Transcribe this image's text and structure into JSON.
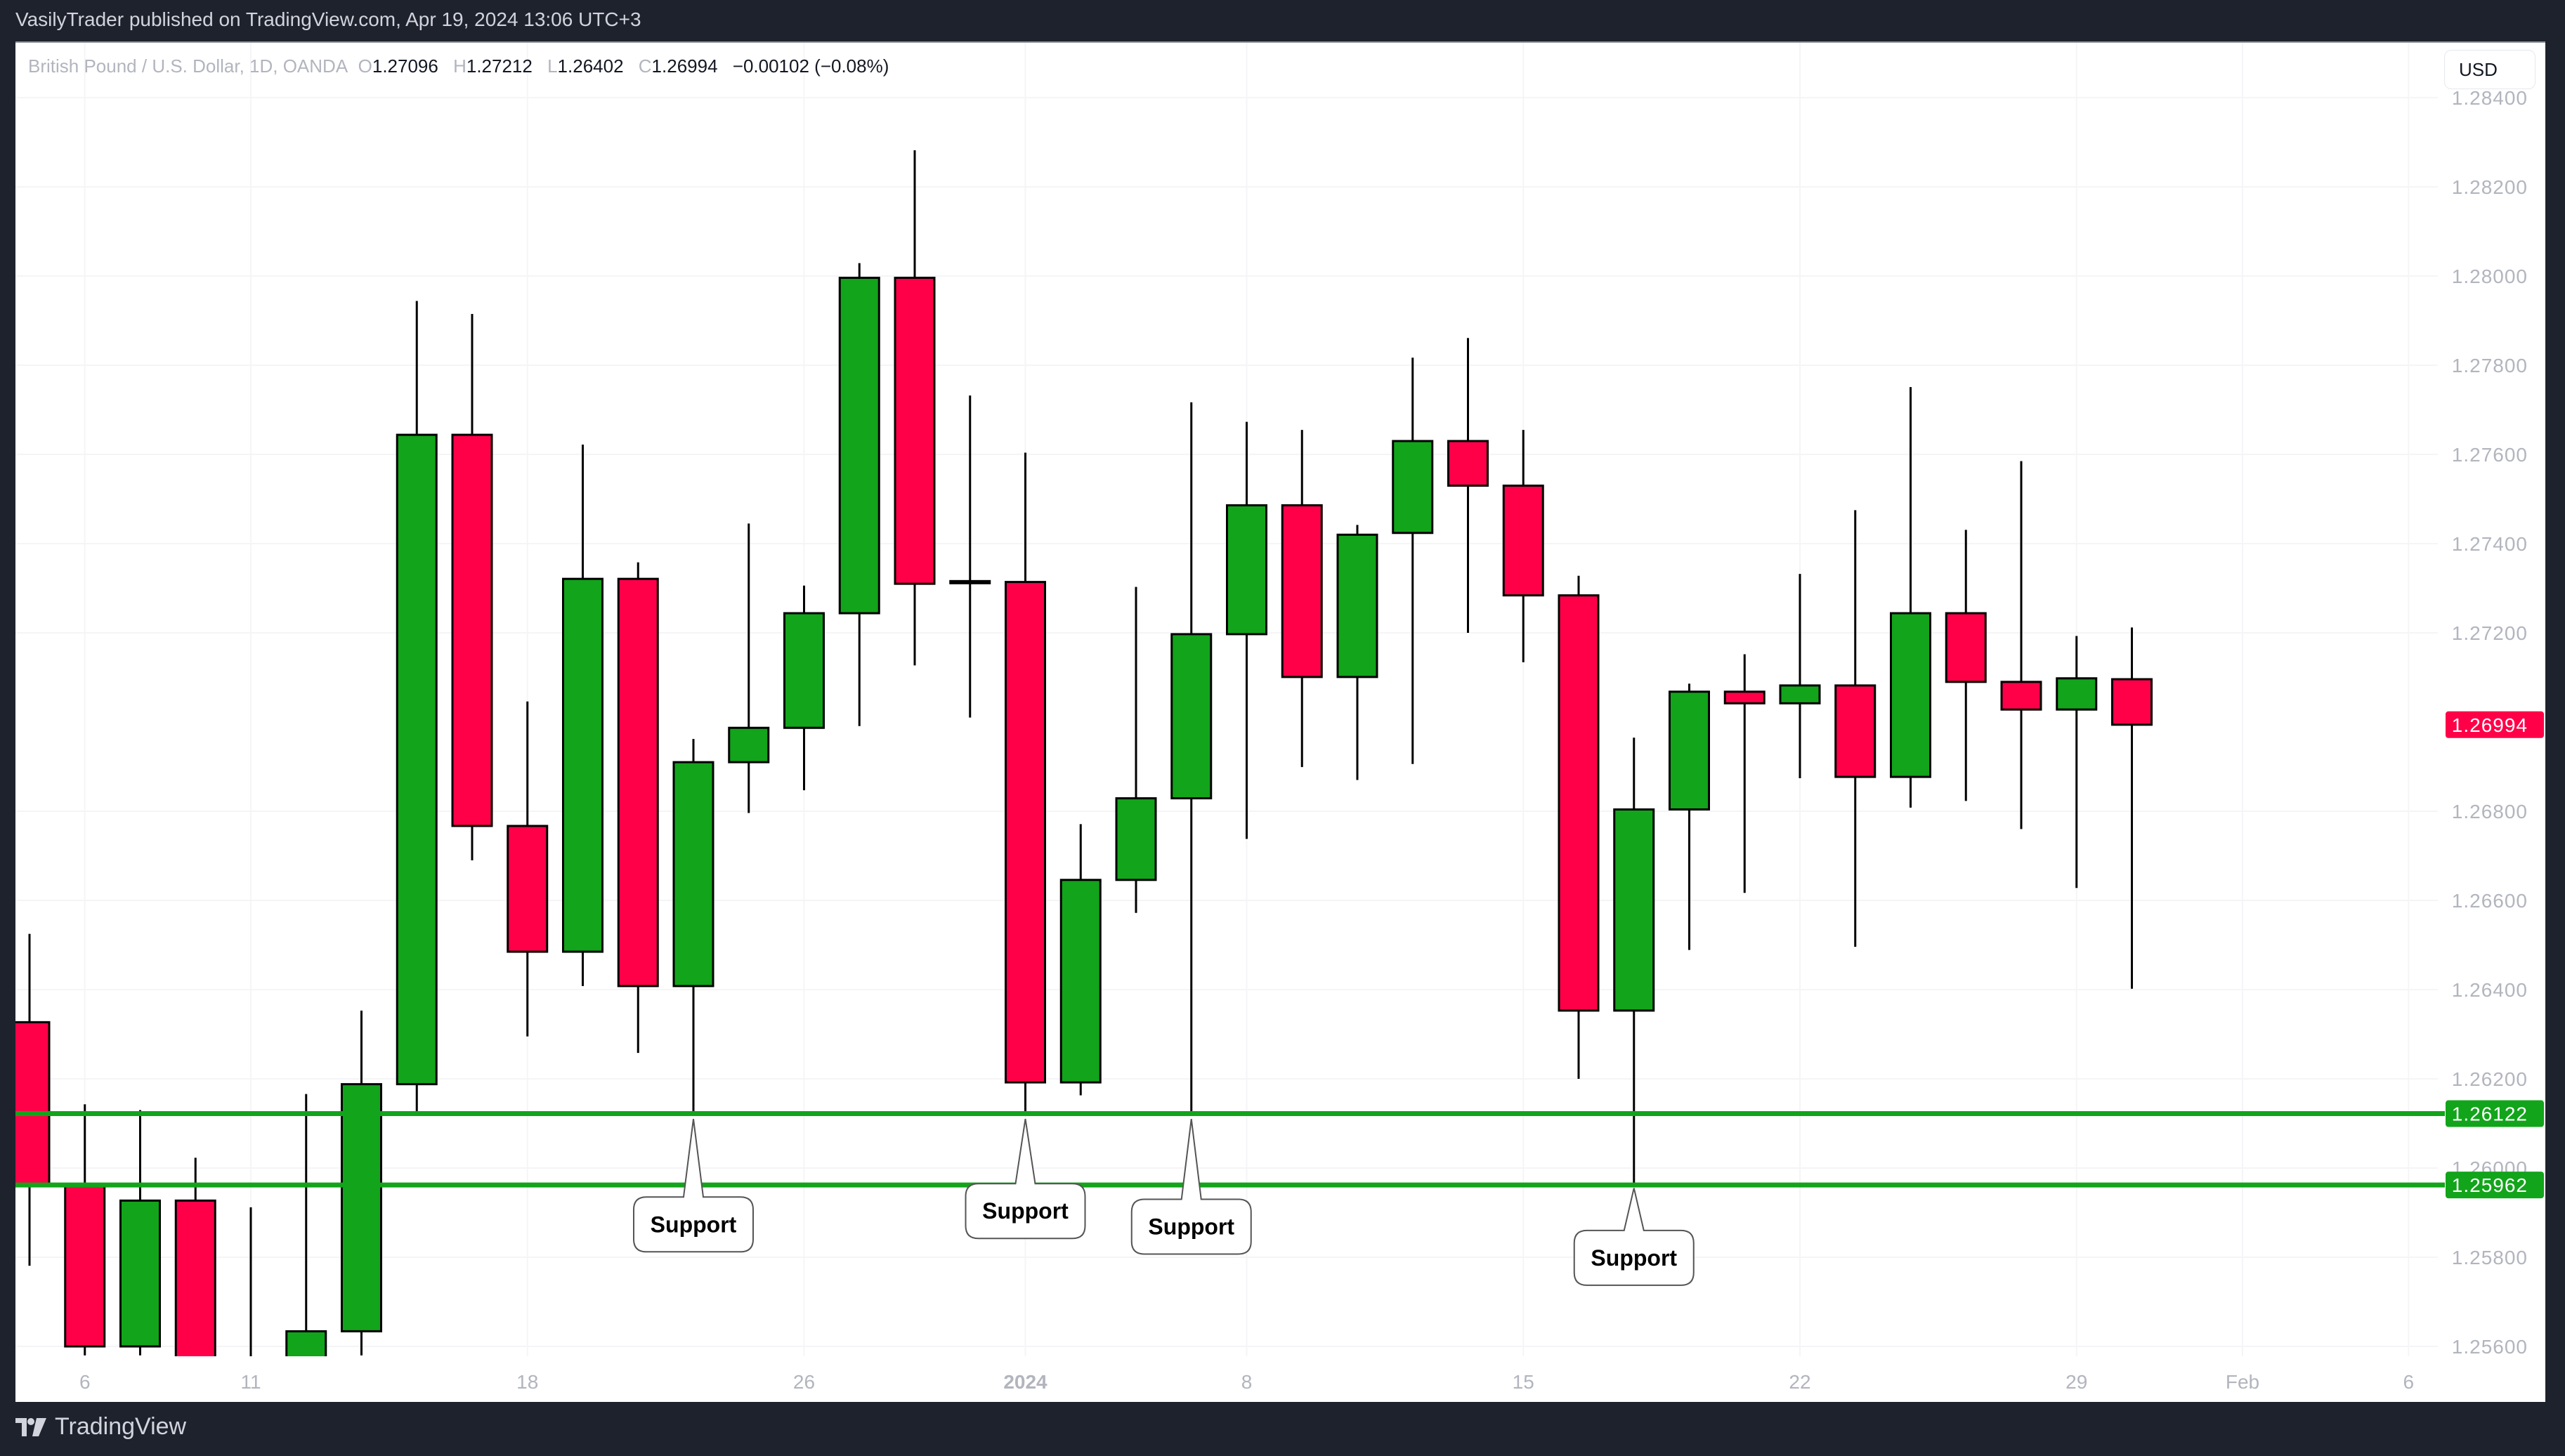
{
  "header": {
    "publisher_line": "VasilyTrader published on TradingView.com, Apr 19, 2024 13:06 UTC+3"
  },
  "legend": {
    "symbol": "British Pound / U.S. Dollar, 1D, OANDA",
    "o_label": "O",
    "o_value": "1.27096",
    "h_label": "H",
    "h_value": "1.27212",
    "l_label": "L",
    "l_value": "1.26402",
    "c_label": "C",
    "c_value": "1.26994",
    "change": "−0.00102 (−0.08%)"
  },
  "currency_button": "USD",
  "footer": {
    "brand": "TradingView",
    "logo_icon": "tradingview-logo-icon"
  },
  "colors": {
    "up": "#12a41a",
    "down": "#ff0048",
    "wick": "#000000",
    "support_line": "#12a41a",
    "axis_text": "#b2b5be",
    "last_price_bg": "#ff0048"
  },
  "chart_data": {
    "type": "candlestick",
    "title": "British Pound / U.S. Dollar, 1D, OANDA",
    "xlabel": "",
    "ylabel": "USD",
    "ylim": [
      1.2553,
      1.2847
    ],
    "grid": true,
    "y_ticks": [
      "1.28400",
      "1.28200",
      "1.28000",
      "1.27800",
      "1.27600",
      "1.27400",
      "1.27200",
      "1.26800",
      "1.26600",
      "1.26400",
      "1.26200",
      "1.26000",
      "1.25800",
      "1.25600"
    ],
    "x_ticks": [
      {
        "label": "6",
        "bar": 1
      },
      {
        "label": "11",
        "bar": 4
      },
      {
        "label": "18",
        "bar": 9
      },
      {
        "label": "26",
        "bar": 14
      },
      {
        "label": "2024",
        "bar": 18,
        "bold": true
      },
      {
        "label": "8",
        "bar": 22
      },
      {
        "label": "15",
        "bar": 27
      },
      {
        "label": "22",
        "bar": 32
      },
      {
        "label": "29",
        "bar": 37
      },
      {
        "label": "Feb",
        "bar": 40
      },
      {
        "label": "6",
        "bar": 43
      }
    ],
    "candles": [
      {
        "o": 1.26327,
        "h": 1.26525,
        "l": 1.25781,
        "c": 1.2596
      },
      {
        "o": 1.2596,
        "h": 1.26143,
        "l": 1.2558,
        "c": 1.256
      },
      {
        "o": 1.256,
        "h": 1.2613,
        "l": 1.2558,
        "c": 1.25927
      },
      {
        "o": 1.25927,
        "h": 1.26023,
        "l": 1.255,
        "c": 1.255
      },
      {
        "o": 1.255,
        "h": 1.25912,
        "l": 1.255,
        "c": 1.255
      },
      {
        "o": 1.255,
        "h": 1.26166,
        "l": 1.255,
        "c": 1.25634
      },
      {
        "o": 1.25634,
        "h": 1.26353,
        "l": 1.2558,
        "c": 1.26188
      },
      {
        "o": 1.26188,
        "h": 1.27944,
        "l": 1.26126,
        "c": 1.27644
      },
      {
        "o": 1.27644,
        "h": 1.27915,
        "l": 1.2669,
        "c": 1.26767
      },
      {
        "o": 1.26767,
        "h": 1.27046,
        "l": 1.26295,
        "c": 1.26485
      },
      {
        "o": 1.26485,
        "h": 1.27622,
        "l": 1.26408,
        "c": 1.27321
      },
      {
        "o": 1.27321,
        "h": 1.27358,
        "l": 1.26258,
        "c": 1.26408
      },
      {
        "o": 1.26408,
        "h": 1.26962,
        "l": 1.26126,
        "c": 1.2691
      },
      {
        "o": 1.2691,
        "h": 1.27445,
        "l": 1.26796,
        "c": 1.26987
      },
      {
        "o": 1.26987,
        "h": 1.27306,
        "l": 1.26847,
        "c": 1.27244
      },
      {
        "o": 1.27244,
        "h": 1.28029,
        "l": 1.26991,
        "c": 1.27996
      },
      {
        "o": 1.27996,
        "h": 1.28282,
        "l": 1.27127,
        "c": 1.2731
      },
      {
        "o": 1.27312,
        "h": 1.27732,
        "l": 1.2701,
        "c": 1.27316
      },
      {
        "o": 1.27314,
        "h": 1.27604,
        "l": 1.26119,
        "c": 1.26192
      },
      {
        "o": 1.26192,
        "h": 1.26771,
        "l": 1.26163,
        "c": 1.26646
      },
      {
        "o": 1.26646,
        "h": 1.27303,
        "l": 1.26572,
        "c": 1.26829
      },
      {
        "o": 1.26829,
        "h": 1.27717,
        "l": 1.26119,
        "c": 1.27197
      },
      {
        "o": 1.27197,
        "h": 1.27673,
        "l": 1.26738,
        "c": 1.27486
      },
      {
        "o": 1.27486,
        "h": 1.27655,
        "l": 1.26899,
        "c": 1.27101
      },
      {
        "o": 1.27101,
        "h": 1.27442,
        "l": 1.2687,
        "c": 1.2742
      },
      {
        "o": 1.27424,
        "h": 1.27817,
        "l": 1.26906,
        "c": 1.2763
      },
      {
        "o": 1.2763,
        "h": 1.27861,
        "l": 1.272,
        "c": 1.2753
      },
      {
        "o": 1.2753,
        "h": 1.27655,
        "l": 1.27134,
        "c": 1.27284
      },
      {
        "o": 1.27284,
        "h": 1.27328,
        "l": 1.262,
        "c": 1.26353
      },
      {
        "o": 1.26353,
        "h": 1.26965,
        "l": 1.25962,
        "c": 1.26804
      },
      {
        "o": 1.26804,
        "h": 1.27086,
        "l": 1.26489,
        "c": 1.27068
      },
      {
        "o": 1.27068,
        "h": 1.27152,
        "l": 1.26617,
        "c": 1.27042
      },
      {
        "o": 1.27042,
        "h": 1.27332,
        "l": 1.26874,
        "c": 1.27082
      },
      {
        "o": 1.27082,
        "h": 1.27475,
        "l": 1.26496,
        "c": 1.26877
      },
      {
        "o": 1.26877,
        "h": 1.27751,
        "l": 1.26808,
        "c": 1.27244
      },
      {
        "o": 1.27244,
        "h": 1.27431,
        "l": 1.26823,
        "c": 1.2709
      },
      {
        "o": 1.2709,
        "h": 1.27585,
        "l": 1.2676,
        "c": 1.27028
      },
      {
        "o": 1.27028,
        "h": 1.27193,
        "l": 1.26628,
        "c": 1.27098
      },
      {
        "o": 1.27096,
        "h": 1.27212,
        "l": 1.26402,
        "c": 1.26994
      }
    ],
    "horizontal_lines": [
      {
        "price": 1.26122,
        "label": "1.26122"
      },
      {
        "price": 1.25962,
        "label": "1.25962"
      }
    ],
    "last_price": {
      "price": 1.26994,
      "label": "1.26994"
    },
    "annotations": [
      {
        "text": "Support",
        "bar": 12,
        "tip_price": 1.2611,
        "box_top_price": 1.25935
      },
      {
        "text": "Support",
        "bar": 18,
        "tip_price": 1.2611,
        "box_top_price": 1.25965
      },
      {
        "text": "Support",
        "bar": 21,
        "tip_price": 1.2611,
        "box_top_price": 1.2593
      },
      {
        "text": "Support",
        "bar": 29,
        "tip_price": 1.25955,
        "box_top_price": 1.2586
      }
    ]
  }
}
